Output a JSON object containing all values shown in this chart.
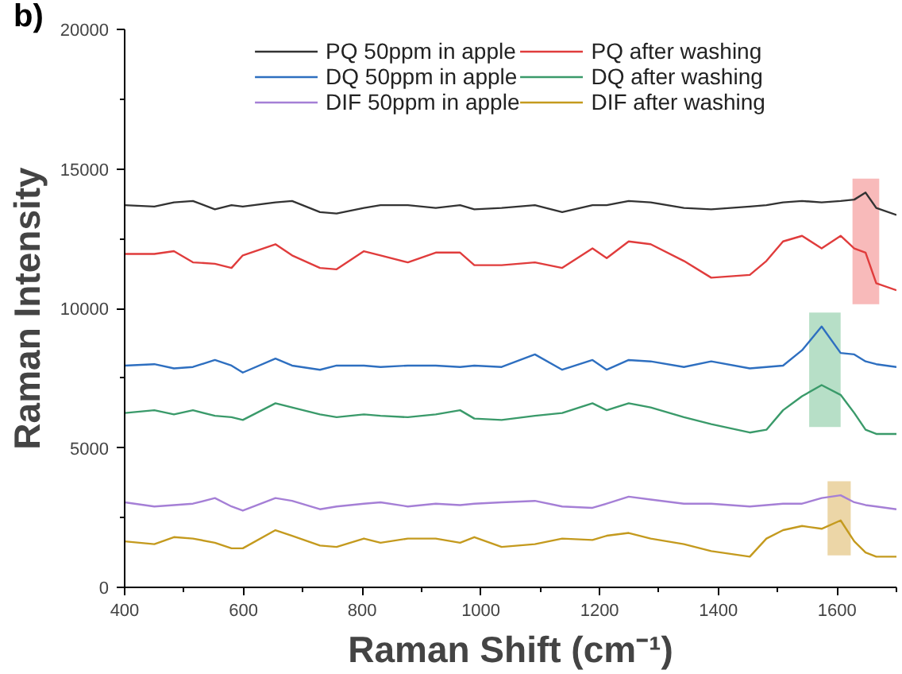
{
  "chart_data": {
    "type": "line",
    "xlabel": "Raman Shift (cm⁻¹)",
    "ylabel": "Raman Intensity",
    "annotations": [
      "b)"
    ],
    "x": [
      400,
      450,
      483,
      515,
      552,
      580,
      599,
      654,
      682,
      729,
      757,
      803,
      831,
      877,
      924,
      965,
      989,
      1035,
      1091,
      1137,
      1188,
      1212,
      1249,
      1286,
      1342,
      1388,
      1453,
      1481,
      1509,
      1541,
      1574,
      1606,
      1629,
      1648,
      1666,
      1700
    ],
    "xlim": [
      400,
      1700
    ],
    "xticks": [
      400,
      600,
      800,
      1000,
      1200,
      1400,
      1600
    ],
    "ylim": [
      0,
      20000
    ],
    "yticks": [
      0,
      5000,
      10000,
      15000,
      20000
    ],
    "grid": false,
    "legend": "top",
    "marker": "none",
    "line_style": "solid",
    "series": [
      {
        "name": "PQ 50ppm in apple",
        "color": "#333333",
        "values": [
          13700,
          13650,
          13800,
          13850,
          13550,
          13700,
          13650,
          13800,
          13850,
          13450,
          13400,
          13600,
          13700,
          13700,
          13600,
          13700,
          13550,
          13600,
          13700,
          13450,
          13700,
          13700,
          13850,
          13800,
          13600,
          13550,
          13650,
          13700,
          13800,
          13850,
          13800,
          13850,
          13900,
          14150,
          13600,
          13350
        ]
      },
      {
        "name": "PQ after washing",
        "color": "#e03c3c",
        "values": [
          11950,
          11950,
          12050,
          11650,
          11600,
          11450,
          11900,
          12300,
          11900,
          11450,
          11400,
          12050,
          11900,
          11650,
          12000,
          12000,
          11550,
          11550,
          11650,
          11450,
          12150,
          11800,
          12400,
          12300,
          11700,
          11100,
          11200,
          11700,
          12400,
          12600,
          12150,
          12600,
          12150,
          12000,
          10900,
          10650
        ]
      },
      {
        "name": "DQ 50ppm in apple",
        "color": "#2e6fc0",
        "values": [
          7950,
          8000,
          7850,
          7900,
          8150,
          7950,
          7700,
          8200,
          7950,
          7800,
          7950,
          7950,
          7900,
          7950,
          7950,
          7900,
          7950,
          7900,
          8350,
          7800,
          8150,
          7800,
          8150,
          8100,
          7900,
          8100,
          7850,
          7900,
          7950,
          8500,
          9350,
          8400,
          8350,
          8100,
          8000,
          7900
        ]
      },
      {
        "name": "DQ after washing",
        "color": "#3a9a6a",
        "values": [
          6250,
          6350,
          6200,
          6350,
          6150,
          6100,
          6000,
          6600,
          6450,
          6200,
          6100,
          6200,
          6150,
          6100,
          6200,
          6350,
          6050,
          6000,
          6150,
          6250,
          6600,
          6350,
          6600,
          6450,
          6100,
          5850,
          5550,
          5650,
          6350,
          6850,
          7250,
          6900,
          6250,
          5650,
          5500,
          5500
        ]
      },
      {
        "name": "DIF 50ppm in apple",
        "color": "#a57fd6",
        "values": [
          3050,
          2900,
          2950,
          3000,
          3200,
          2900,
          2750,
          3200,
          3100,
          2800,
          2900,
          3000,
          3050,
          2900,
          3000,
          2950,
          3000,
          3050,
          3100,
          2900,
          2850,
          3000,
          3250,
          3150,
          3000,
          3000,
          2900,
          2950,
          3000,
          3000,
          3200,
          3300,
          3050,
          2950,
          2900,
          2800
        ]
      },
      {
        "name": "DIF after washing",
        "color": "#c49a1e",
        "values": [
          1650,
          1550,
          1800,
          1750,
          1600,
          1400,
          1400,
          2050,
          1850,
          1500,
          1450,
          1750,
          1600,
          1750,
          1750,
          1600,
          1800,
          1450,
          1550,
          1750,
          1700,
          1850,
          1950,
          1750,
          1550,
          1300,
          1100,
          1750,
          2050,
          2200,
          2100,
          2400,
          1650,
          1250,
          1100,
          1100
        ]
      }
    ],
    "bands": [
      {
        "axis": "x",
        "from": 1626,
        "to": 1671,
        "color": "#f5a3a3"
      },
      {
        "axis": "x",
        "from": 1553,
        "to": 1606,
        "color": "#9fd4b4"
      },
      {
        "axis": "x",
        "from": 1584,
        "to": 1623,
        "color": "#e6c88a"
      }
    ]
  }
}
